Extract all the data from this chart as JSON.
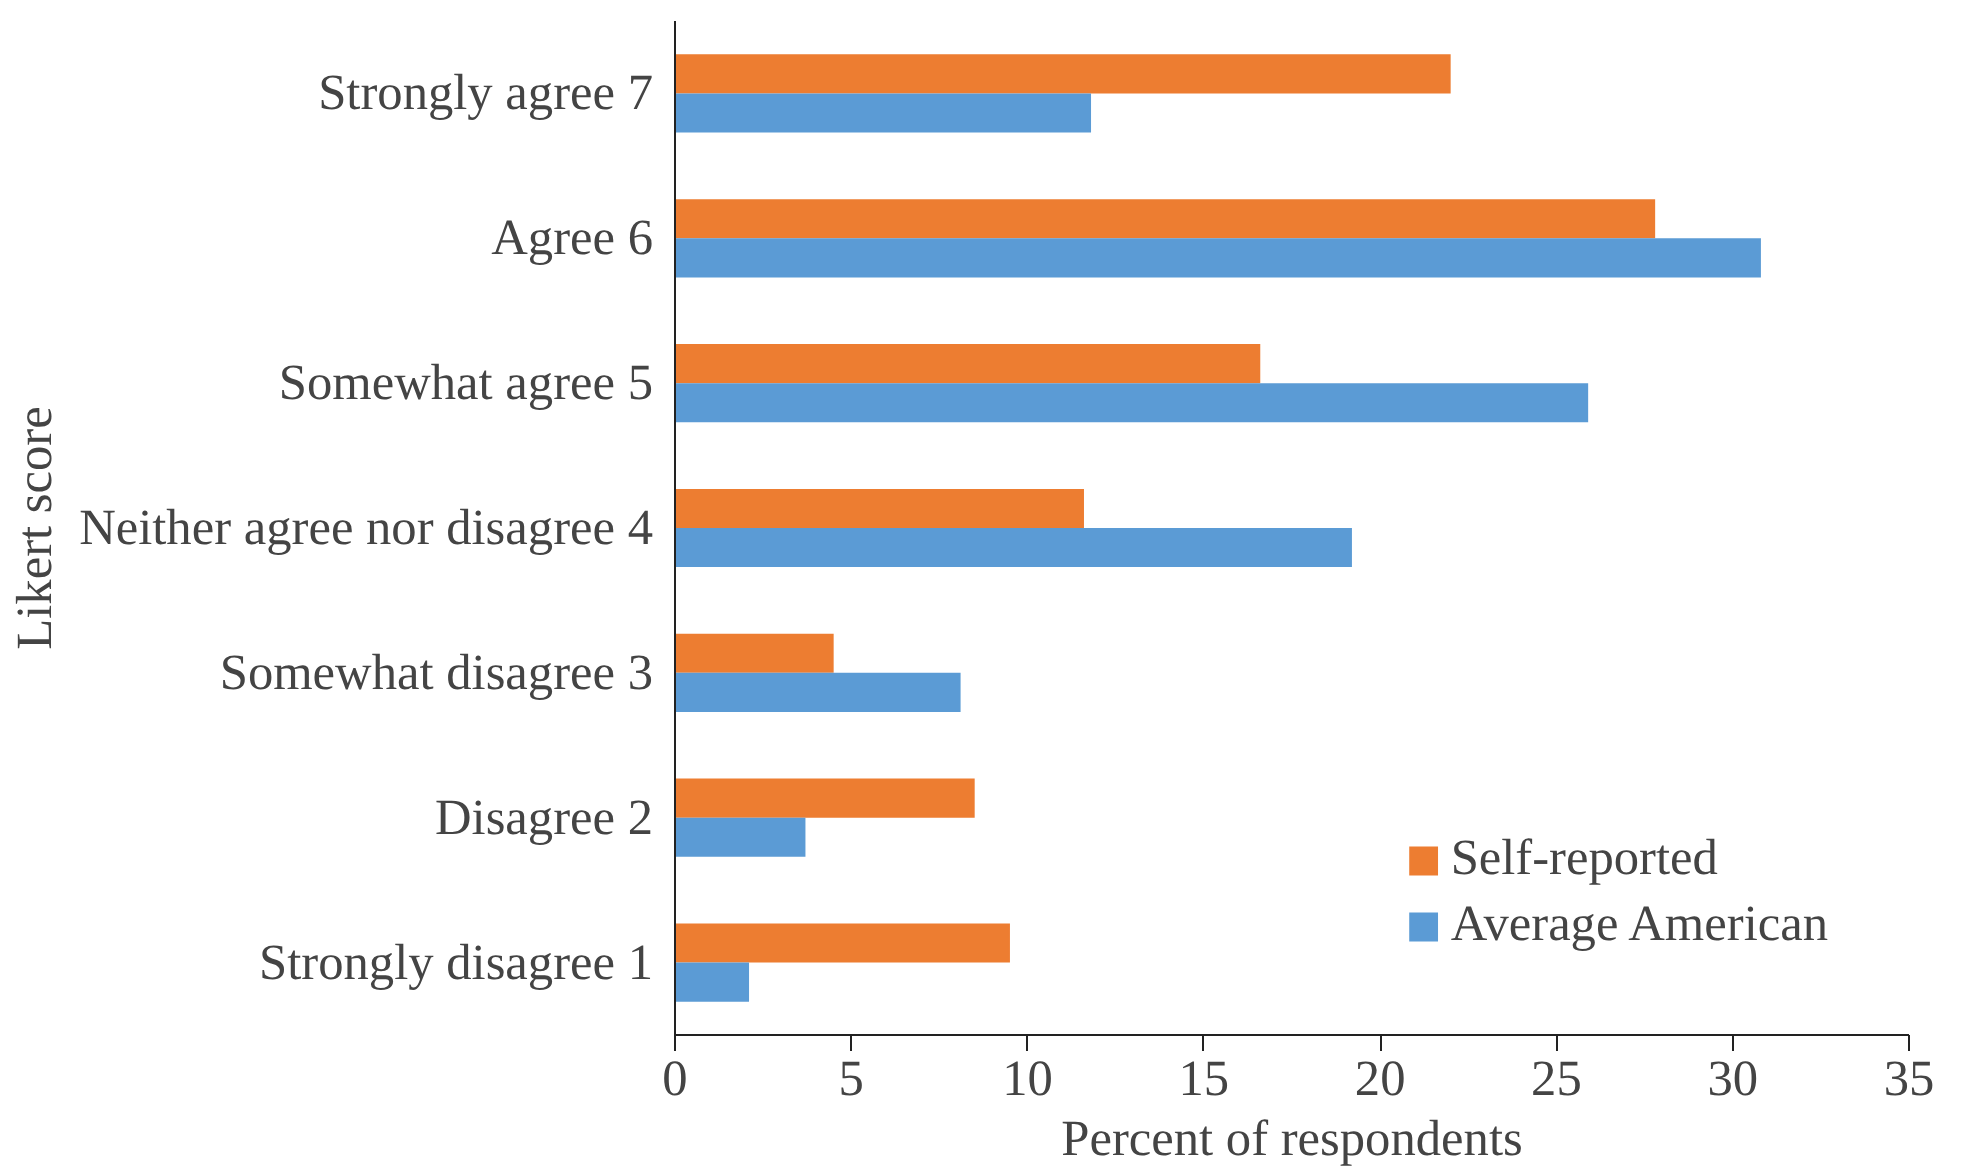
{
  "chart_data": {
    "type": "bar",
    "orientation": "horizontal",
    "xlabel": "Percent of respondents",
    "ylabel": "Likert score",
    "categories": [
      "Strongly agree 7",
      "Agree 6",
      "Somewhat agree 5",
      "Neither agree nor disagree 4",
      "Somewhat disagree 3",
      "Disagree 2",
      "Strongly disagree 1"
    ],
    "series": [
      {
        "name": "Self-reported",
        "color": "#ed7d31",
        "values": [
          22.0,
          27.8,
          16.6,
          11.6,
          4.5,
          8.5,
          9.5
        ]
      },
      {
        "name": "Average American",
        "color": "#5b9bd5",
        "values": [
          11.8,
          30.8,
          25.9,
          19.2,
          8.1,
          3.7,
          2.1
        ]
      }
    ],
    "xlim": [
      0,
      35
    ],
    "xticks": [
      0,
      5,
      10,
      15,
      20,
      25,
      30,
      35
    ],
    "grid": false,
    "legend": "bottom right"
  }
}
